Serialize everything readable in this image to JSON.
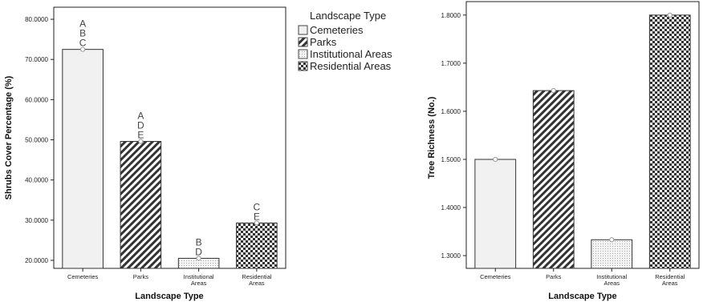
{
  "colors": {
    "bar_stroke": "#333333",
    "cemeteries_fill": "#f1f1f1",
    "parks_fill": "#333333",
    "institutional_fill": "#eeeeee",
    "residential_fill": "#333333"
  },
  "legend": {
    "title": "Landscape Type",
    "placement": "top-center",
    "items": [
      {
        "label": "Cemeteries",
        "pattern": "cemeteries"
      },
      {
        "label": "Parks",
        "pattern": "parks"
      },
      {
        "label": "Institutional Areas",
        "pattern": "institutional"
      },
      {
        "label": "Residential Areas",
        "pattern": "residential"
      }
    ]
  },
  "chart_data": [
    {
      "type": "bar",
      "title": "",
      "xlabel": "Landscape Type",
      "ylabel": "Shrubs Cover Percentage (%)",
      "categories": [
        [
          "Cemeteries"
        ],
        [
          "Parks"
        ],
        [
          "Institutional",
          "Areas"
        ],
        [
          "Residential",
          "Areas"
        ]
      ],
      "patterns": [
        "cemeteries",
        "parks",
        "institutional",
        "residential"
      ],
      "values": [
        72.5,
        49.6,
        20.5,
        29.3
      ],
      "ylim": [
        18.0,
        83.0
      ],
      "yticks": [
        20.0,
        30.0,
        40.0,
        50.0,
        60.0,
        70.0,
        80.0
      ],
      "ytick_labels": [
        "20.0000",
        "30.0000",
        "40.0000",
        "50.0000",
        "60.0000",
        "70.0000",
        "80.0000"
      ],
      "grid": false,
      "significance_letters": [
        [
          "A",
          "B",
          "C"
        ],
        [
          "A",
          "D",
          "E"
        ],
        [
          "B",
          "D"
        ],
        [
          "C",
          "E"
        ]
      ]
    },
    {
      "type": "bar",
      "title": "",
      "xlabel": "Landscape Type",
      "ylabel": "Tree Richness (No.)",
      "categories": [
        [
          "Cemeteries"
        ],
        [
          "Parks"
        ],
        [
          "Institutional",
          "Areas"
        ],
        [
          "Residential",
          "Areas"
        ]
      ],
      "patterns": [
        "cemeteries",
        "parks",
        "institutional",
        "residential"
      ],
      "values": [
        1.5,
        1.643,
        1.333,
        1.8
      ],
      "ylim": [
        1.2735,
        1.828
      ],
      "yticks": [
        1.3,
        1.4,
        1.5,
        1.6,
        1.7,
        1.8
      ],
      "ytick_labels": [
        "1.3000",
        "1.4000",
        "1.5000",
        "1.6000",
        "1.7000",
        "1.8000"
      ],
      "grid": false
    }
  ]
}
